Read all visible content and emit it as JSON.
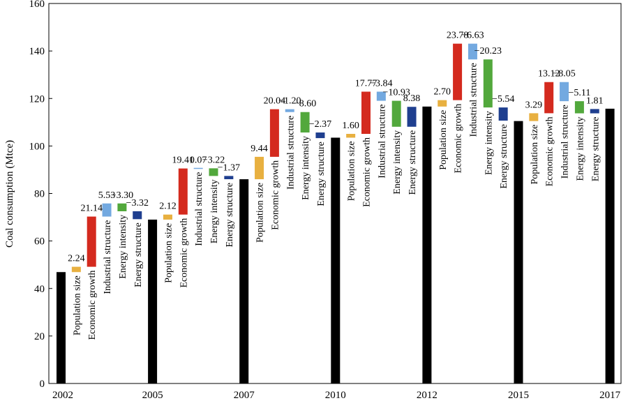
{
  "chart_data": {
    "type": "bar",
    "subtype": "waterfall",
    "ylabel": "Coal consumption (Mtce)",
    "xlabel": "",
    "title": "",
    "ylim": [
      0,
      160
    ],
    "yticks": [
      0,
      20,
      40,
      60,
      80,
      100,
      120,
      140,
      160
    ],
    "grid": false,
    "legend": "none",
    "colors": {
      "total": "#000000",
      "Population size": "#e8b040",
      "Economic growth": "#d42a1e",
      "Industrial structure": "#73a9e0",
      "Energy intensity": "#52a83c",
      "Energy structure": "#1f3f8f"
    },
    "factors": [
      "Population size",
      "Economic growth",
      "Industrial structure",
      "Energy intensity",
      "Energy structure"
    ],
    "years": [
      "2002",
      "2005",
      "2007",
      "2010",
      "2012",
      "2015",
      "2017"
    ],
    "totals": [
      46.9,
      69.0,
      86.0,
      103.5,
      116.6,
      110.5,
      115.7
    ],
    "periods": [
      {
        "from": "2002",
        "to": "2005",
        "changes": [
          2.24,
          21.14,
          5.53,
          -3.3,
          -3.32
        ],
        "labels": [
          "2.24",
          "21.14",
          "5.53",
          "−3.30",
          "−3.32"
        ]
      },
      {
        "from": "2005",
        "to": "2007",
        "changes": [
          2.12,
          19.41,
          0.07,
          -3.22,
          -1.37
        ],
        "labels": [
          "2.12",
          "19.41",
          "0.07",
          "−3.22",
          "−1.37"
        ]
      },
      {
        "from": "2007",
        "to": "2010",
        "changes": [
          9.44,
          20.04,
          -1.2,
          -8.6,
          -2.37
        ],
        "labels": [
          "9.44",
          "20.04",
          "−1.20",
          "−8.60",
          "−2.37"
        ]
      },
      {
        "from": "2010",
        "to": "2012",
        "changes": [
          1.6,
          17.77,
          -3.84,
          -10.93,
          8.38
        ],
        "labels": [
          "1.60",
          "17.77",
          "−3.84",
          "−10.93",
          "8.38"
        ]
      },
      {
        "from": "2012",
        "to": "2015",
        "changes": [
          2.7,
          23.78,
          -6.63,
          -20.23,
          -5.54
        ],
        "labels": [
          "2.70",
          "23.78",
          "−6.63",
          "−20.23",
          "−5.54"
        ]
      },
      {
        "from": "2015",
        "to": "2017",
        "changes": [
          3.29,
          13.12,
          -8.05,
          -5.11,
          1.81
        ],
        "labels": [
          "3.29",
          "13.12",
          "−8.05",
          "−5.11",
          "1.81"
        ]
      }
    ]
  }
}
